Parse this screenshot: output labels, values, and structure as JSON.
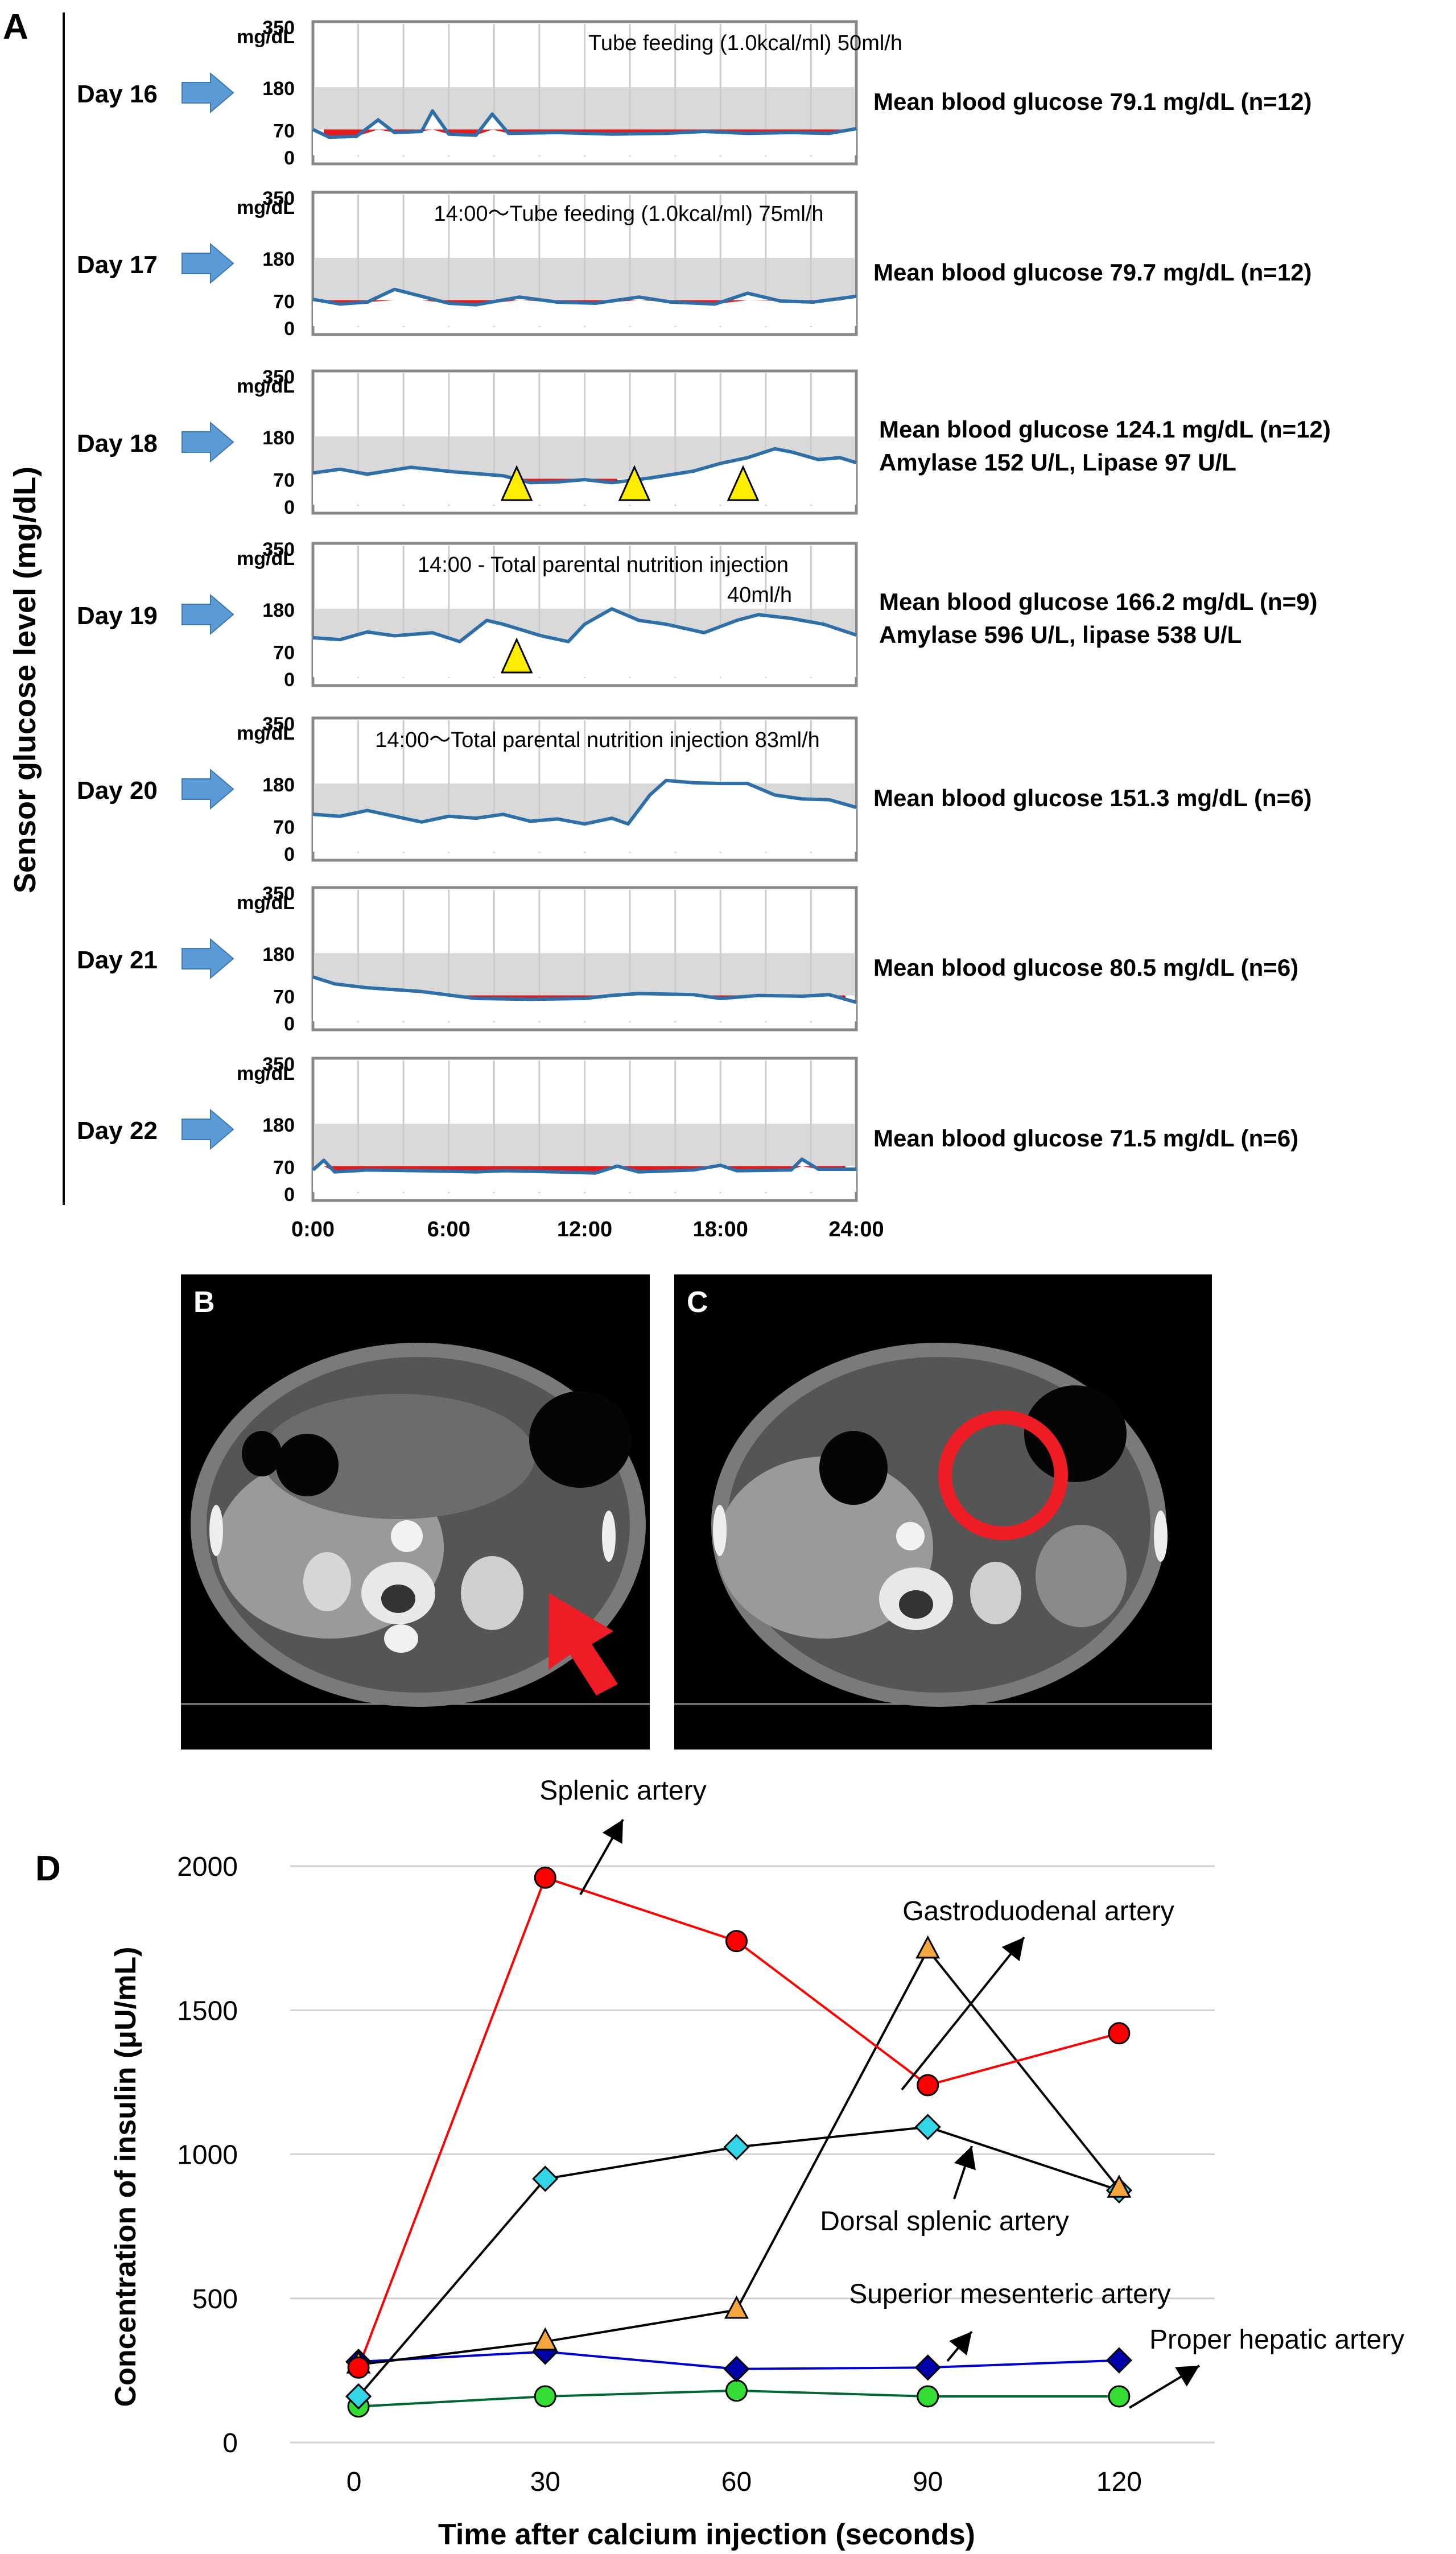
{
  "panel_a": {
    "label": "A",
    "y_axis_title": "Sensor glucose level (mg/dL)",
    "unit_label": "mg/dL",
    "y_ticks": [
      "350",
      "180",
      "70",
      "0"
    ],
    "x_ticks": [
      "0:00",
      "6:00",
      "12:00",
      "18:00",
      "24:00"
    ],
    "colors": {
      "target_band": "#d9d9d9",
      "hypo_fill": "#e31a1c",
      "trace": "#2e6fa8",
      "arrow": "#5b9bd5",
      "marker": "#ffee00"
    },
    "days": [
      {
        "label": "Day 16",
        "annotation": "Tube feeding (1.0kcal/ml)   50ml/h",
        "annotation2": "",
        "stats": [
          "Mean blood glucose 79.1 mg/dL (n=12)"
        ],
        "markers": []
      },
      {
        "label": "Day 17",
        "annotation": "14:00〜Tube feeding (1.0kcal/ml)  75ml/h",
        "annotation2": "",
        "stats": [
          "Mean blood glucose 79.7 mg/dL (n=12)"
        ],
        "markers": []
      },
      {
        "label": "Day 18",
        "annotation": "",
        "annotation2": "",
        "stats": [
          "Mean blood glucose 124.1 mg/dL (n=12)",
          "Amylase 152 U/L, Lipase  97 U/L"
        ],
        "markers": [
          9,
          14.2,
          19
        ]
      },
      {
        "label": "Day 19",
        "annotation": "14:00 - Total parental nutrition injection",
        "annotation2": "40ml/h",
        "stats": [
          "Mean blood glucose 166.2 mg/dL (n=9)",
          "Amylase 596 U/L, lipase 538 U/L"
        ],
        "markers": [
          9
        ]
      },
      {
        "label": "Day 20",
        "annotation": "14:00〜Total parental nutrition injection   83ml/h",
        "annotation2": "",
        "stats": [
          "Mean blood glucose 151.3 mg/dL (n=6)"
        ],
        "markers": []
      },
      {
        "label": "Day 21",
        "annotation": "",
        "annotation2": "",
        "stats": [
          "Mean blood glucose 80.5 mg/dL (n=6)"
        ],
        "markers": []
      },
      {
        "label": "Day 22",
        "annotation": "",
        "annotation2": "",
        "stats": [
          "Mean blood glucose 71.5 mg/dL (n=6)"
        ],
        "markers": []
      }
    ]
  },
  "panel_b": {
    "label": "B"
  },
  "panel_c": {
    "label": "C"
  },
  "chart_data": {
    "type": "line",
    "panel_label": "D",
    "title": "",
    "xlabel": "Time after calcium injection (seconds)",
    "ylabel": "Concentration of insulin (μU/mL)",
    "x_ticks": [
      "0",
      "30",
      "60",
      "90",
      "120"
    ],
    "y_ticks": [
      "0",
      "500",
      "1000",
      "1500",
      "2000"
    ],
    "xlim": [
      -10,
      135
    ],
    "ylim": [
      0,
      2000
    ],
    "grid": true,
    "series": [
      {
        "name": "Splenic artery",
        "color": "#ff0000",
        "line": "#ff0000",
        "marker": "circle",
        "x": [
          0,
          30,
          60,
          90,
          120
        ],
        "values": [
          260,
          1960,
          1740,
          1240,
          1420
        ]
      },
      {
        "name": "Gastroduodenal artery",
        "color": "#f4a540",
        "line": "#000000",
        "marker": "triangle",
        "x": [
          0,
          30,
          60,
          90,
          120
        ],
        "values": [
          270,
          350,
          460,
          1710,
          880
        ]
      },
      {
        "name": "Dorsal splenic artery",
        "color": "#33d6e6",
        "line": "#000000",
        "marker": "diamond",
        "x": [
          0,
          30,
          60,
          90,
          120
        ],
        "values": [
          160,
          915,
          1025,
          1095,
          875
        ]
      },
      {
        "name": "Superior mesenteric artery",
        "color": "#0000aa",
        "line": "#0000cc",
        "marker": "diamond",
        "x": [
          0,
          30,
          60,
          90,
          120
        ],
        "values": [
          280,
          315,
          255,
          260,
          285
        ]
      },
      {
        "name": "Proper hepatic artery",
        "color": "#33dd33",
        "line": "#006633",
        "marker": "circle",
        "x": [
          0,
          30,
          60,
          90,
          120
        ],
        "values": [
          125,
          160,
          180,
          160,
          160
        ]
      }
    ]
  }
}
